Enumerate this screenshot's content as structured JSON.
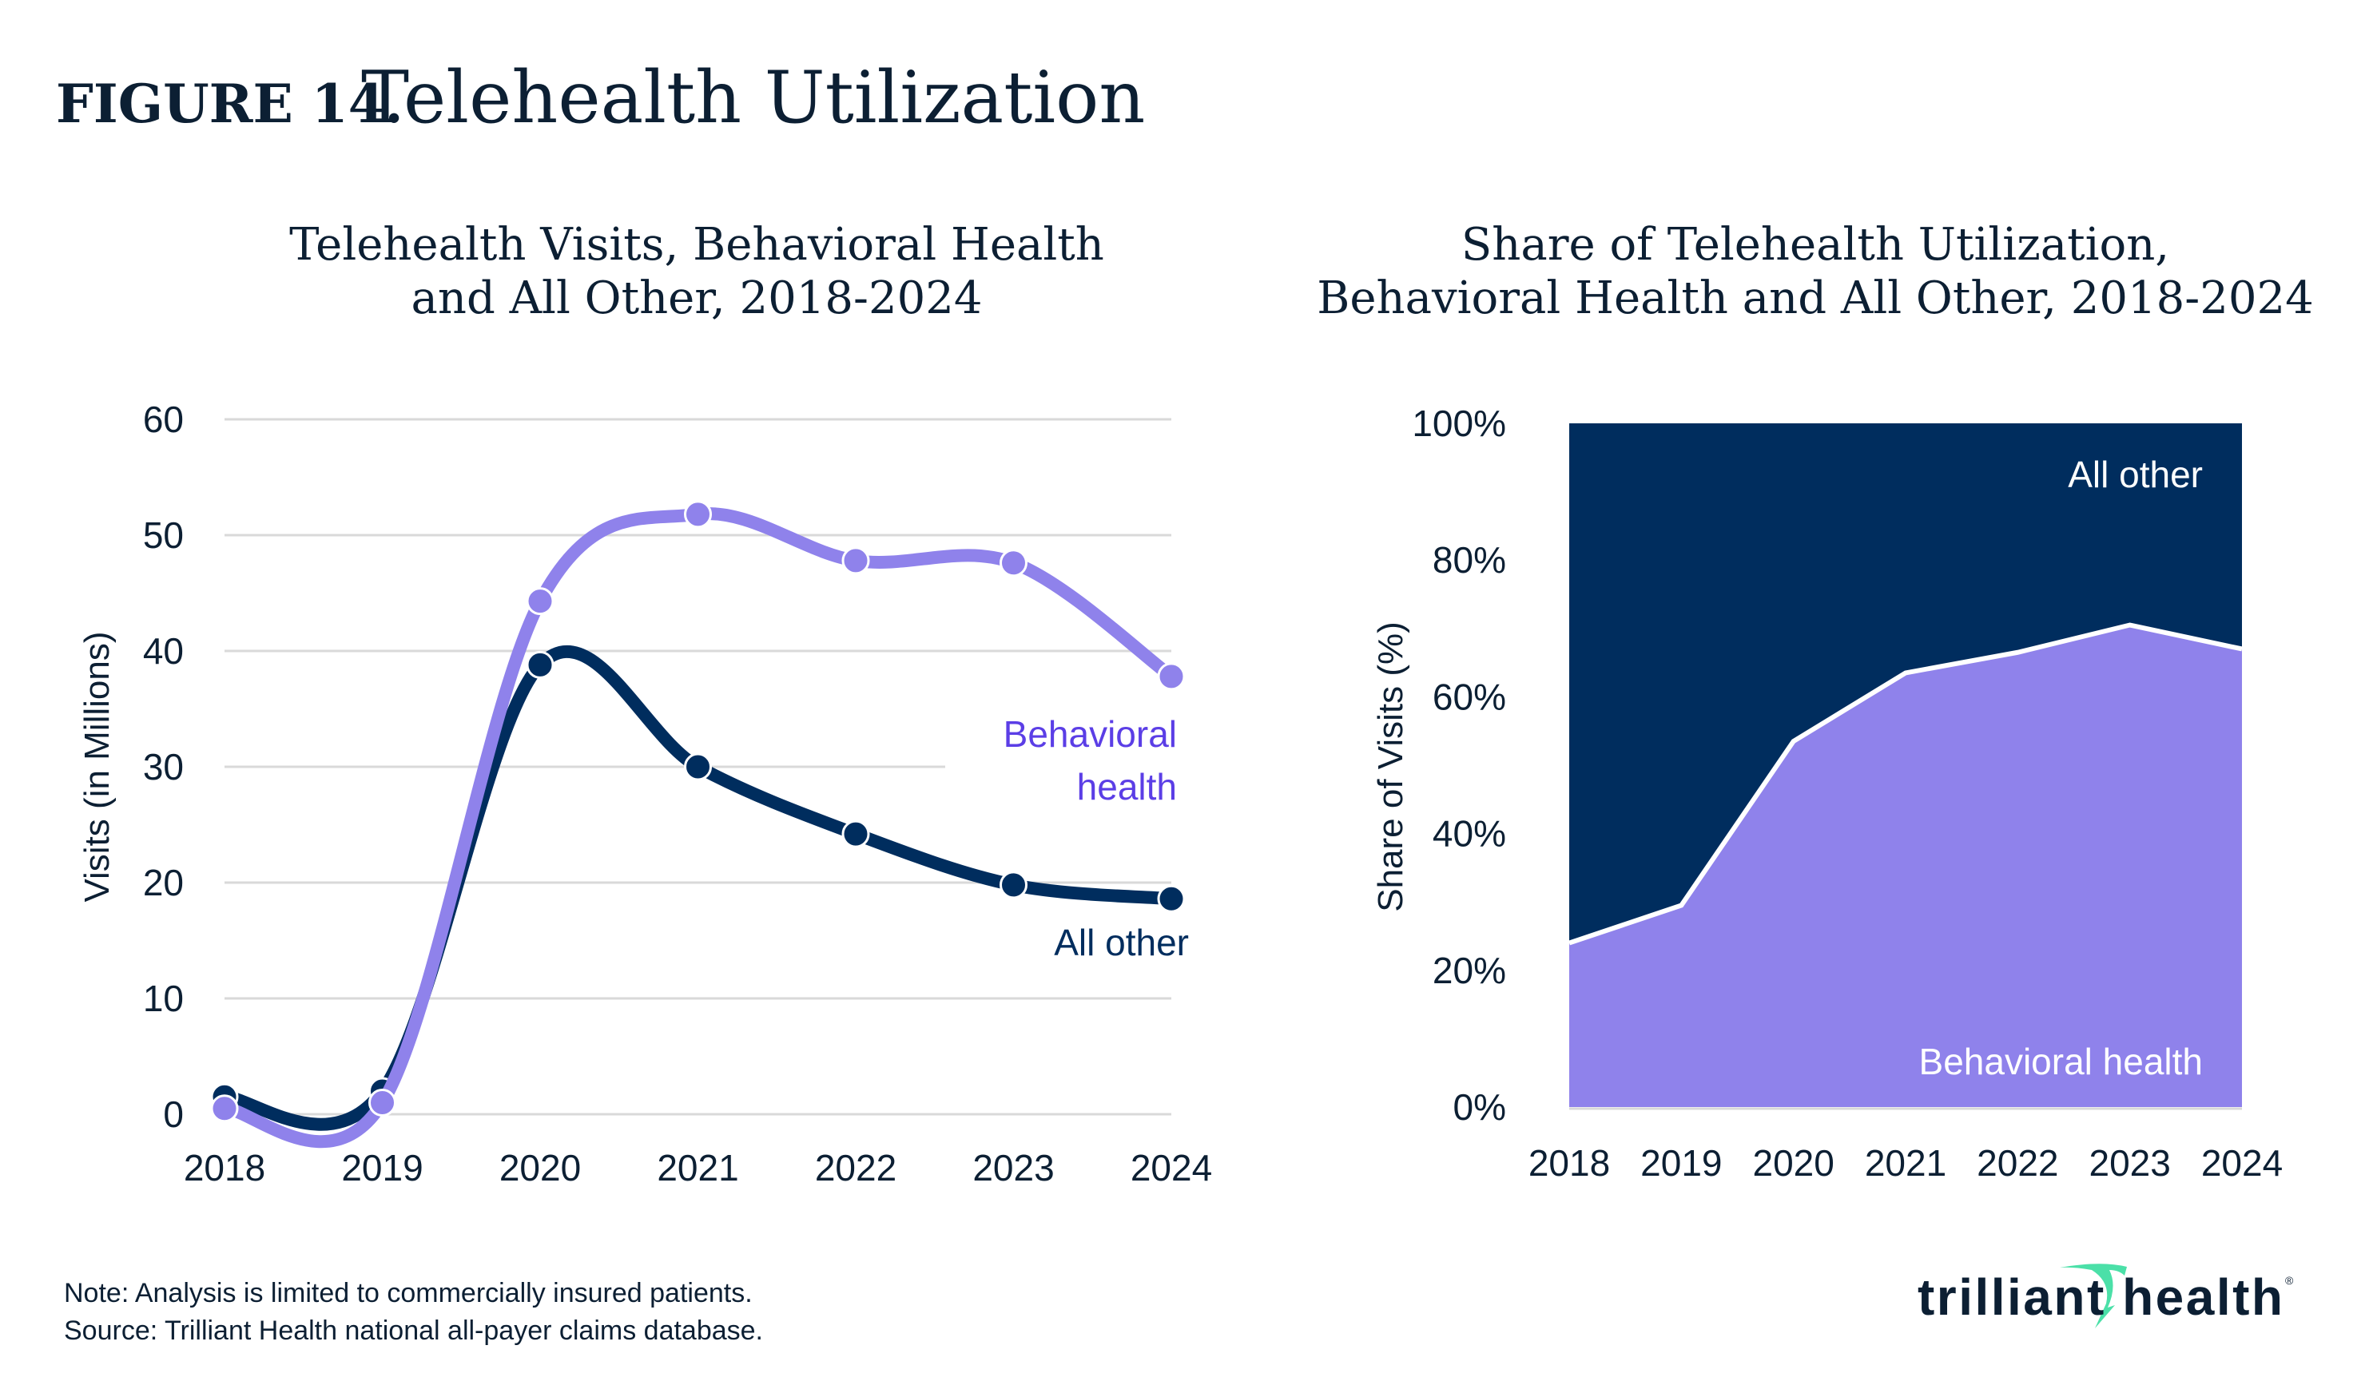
{
  "header": {
    "figure_label": "FIGURE 14.",
    "title": "Telehealth Utilization"
  },
  "colors": {
    "behavioral": "#8f82eb",
    "behavioral_label": "#5b3ee6",
    "all_other": "#002d5e",
    "text": "#0c1f33",
    "grid": "#d9d9d9",
    "logo_accent": "#4be0a8"
  },
  "chart_data": [
    {
      "type": "line",
      "title_lines": [
        "Telehealth Visits, Behavioral Health",
        "and All Other, 2018-2024"
      ],
      "ylabel": "Visits (in Millions)",
      "xlabel": "",
      "categories": [
        "2018",
        "2019",
        "2020",
        "2021",
        "2022",
        "2023",
        "2024"
      ],
      "ylim": [
        0,
        60
      ],
      "yticks": [
        "0",
        "10",
        "20",
        "30",
        "40",
        "50",
        "60"
      ],
      "grid": true,
      "smooth": true,
      "series": [
        {
          "name": "All other",
          "color": "#002d5e",
          "values": [
            1.5,
            2.0,
            38.8,
            30.0,
            24.2,
            19.8,
            18.6
          ]
        },
        {
          "name": "Behavioral health",
          "label_lines": [
            "Behavioral",
            "health"
          ],
          "color": "#8f82eb",
          "values": [
            0.5,
            1.0,
            44.3,
            51.8,
            47.8,
            47.6,
            37.8
          ]
        }
      ]
    },
    {
      "type": "area",
      "stacked_percent": true,
      "title_lines": [
        "Share of Telehealth Utilization,",
        "Behavioral Health and All Other, 2018-2024"
      ],
      "ylabel": "Share of Visits (%)",
      "xlabel": "",
      "categories": [
        "2018",
        "2019",
        "2020",
        "2021",
        "2022",
        "2023",
        "2024"
      ],
      "ylim": [
        0,
        100
      ],
      "yticks": [
        "0%",
        "20%",
        "40%",
        "60%",
        "80%",
        "100%"
      ],
      "series": [
        {
          "name": "Behavioral health",
          "color": "#8f82eb",
          "values": [
            24,
            29.5,
            53.5,
            63.5,
            66.5,
            70.5,
            67
          ]
        },
        {
          "name": "All other",
          "color": "#002d5e",
          "values": [
            76,
            70.5,
            46.5,
            36.5,
            33.5,
            29.5,
            33
          ]
        }
      ]
    }
  ],
  "footer": {
    "note": "Note: Analysis is limited to commercially insured patients.",
    "source": "Source: Trilliant Health national all-payer claims database.",
    "logo_text": "trilliant health"
  }
}
